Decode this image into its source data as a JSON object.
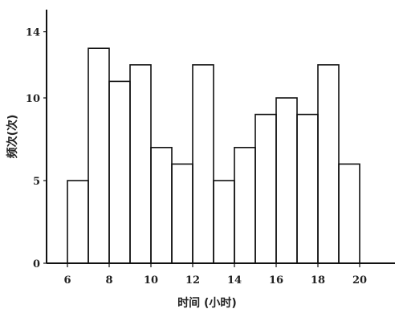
{
  "chart_data": {
    "type": "bar",
    "title": "",
    "xlabel": "时间 (小时)",
    "ylabel": "频次(次)",
    "bar_width_hours": 1,
    "x": [
      6,
      7,
      8,
      9,
      10,
      11,
      12,
      13,
      14,
      15,
      16,
      17,
      18,
      19
    ],
    "values": [
      5,
      13,
      11,
      12,
      7,
      6,
      12,
      5,
      7,
      9,
      10,
      9,
      12,
      6
    ],
    "xlim": [
      5,
      21.3
    ],
    "ylim": [
      0,
      15
    ],
    "xticks": [
      6,
      8,
      10,
      12,
      14,
      16,
      18,
      20
    ],
    "yticks": [
      0,
      5,
      10,
      14
    ],
    "xtick_labels": [
      "6",
      "8",
      "10",
      "12",
      "14",
      "16",
      "18",
      "20"
    ],
    "ytick_labels": [
      "0",
      "5",
      "10",
      "14"
    ],
    "grid": false,
    "legend": "none"
  }
}
